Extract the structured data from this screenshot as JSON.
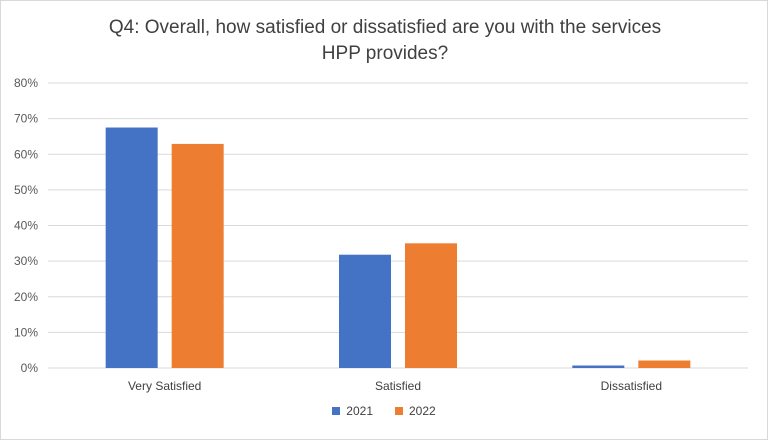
{
  "chart_data": {
    "type": "bar",
    "title_line1": "Q4: Overall, how satisfied or dissatisfied are you with the services",
    "title_line2": "HPP provides?",
    "categories": [
      "Very Satisfied",
      "Satisfied",
      "Dissatisfied"
    ],
    "series": [
      {
        "name": "2021",
        "color": "#4472c4",
        "values": [
          67.5,
          31.8,
          0.7
        ]
      },
      {
        "name": "2022",
        "color": "#ed7d31",
        "values": [
          62.9,
          35.0,
          2.1
        ]
      }
    ],
    "ylim": [
      0,
      80
    ],
    "yticks": [
      "0%",
      "10%",
      "20%",
      "30%",
      "40%",
      "50%",
      "60%",
      "70%",
      "80%"
    ],
    "grid": true,
    "legend_position": "bottom"
  }
}
